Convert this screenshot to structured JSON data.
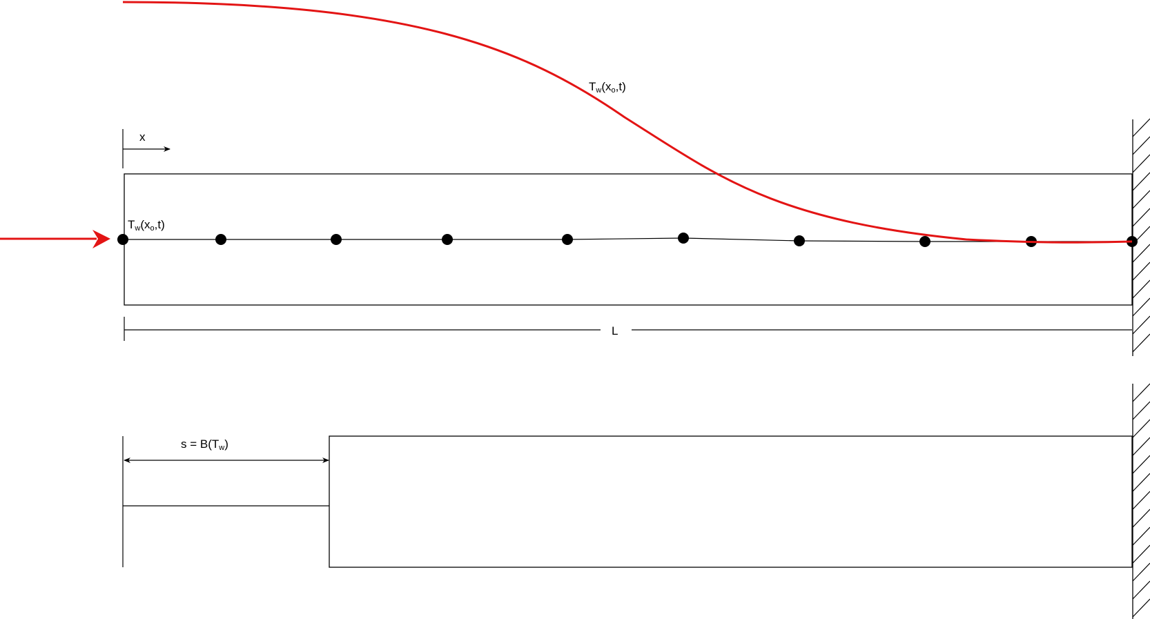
{
  "labels": {
    "x_axis": "x",
    "curve_label": {
      "main": "T",
      "sub": "w",
      "rest": "(x",
      "sub2": "o",
      "tail": ",t)"
    },
    "inlet_label": {
      "main": "T",
      "sub": "w",
      "rest": "(x",
      "sub2": "o",
      "tail": ",t)"
    },
    "length": "L",
    "shift": {
      "main": "s = B(T",
      "sub": "w",
      "tail": ")"
    }
  },
  "colors": {
    "profile": "#e31414",
    "lines": "#000000"
  },
  "nodes": {
    "count": 10
  }
}
